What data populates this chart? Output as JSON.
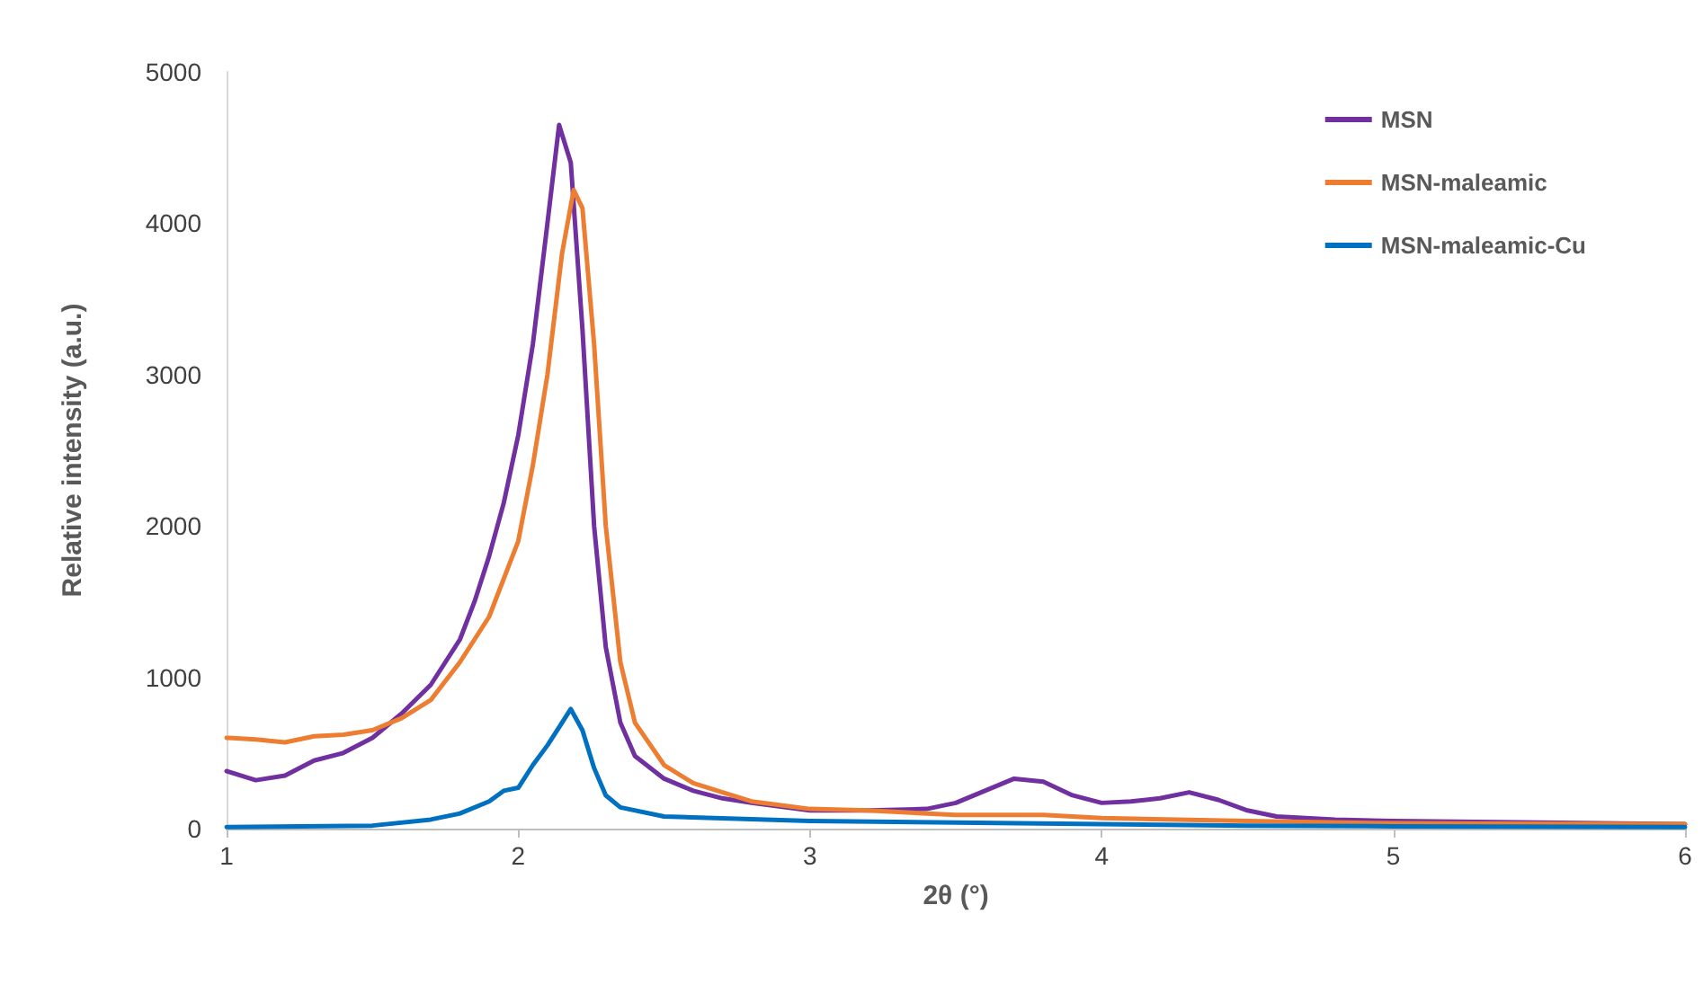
{
  "chart_data": {
    "type": "line",
    "xlabel": "2θ (°)",
    "ylabel": "Relative intensity (a.u.)",
    "xlim": [
      1,
      6
    ],
    "xticks": [
      1,
      2,
      3,
      4,
      5,
      6
    ],
    "ylim": [
      0,
      5000
    ],
    "yticks": [
      0,
      1000,
      2000,
      3000,
      4000,
      5000
    ],
    "grid": false,
    "legend": "top right",
    "marker": "none",
    "line_style": "solid",
    "series": [
      {
        "name": "MSN",
        "color": "#7030a0",
        "x": [
          1,
          1.1,
          1.2,
          1.3,
          1.4,
          1.5,
          1.6,
          1.7,
          1.8,
          1.85,
          1.9,
          1.95,
          2,
          2.05,
          2.1,
          2.14,
          2.18,
          2.22,
          2.26,
          2.3,
          2.35,
          2.4,
          2.5,
          2.6,
          2.7,
          2.8,
          3,
          3.2,
          3.4,
          3.5,
          3.6,
          3.7,
          3.8,
          3.9,
          4,
          4.1,
          4.2,
          4.3,
          4.4,
          4.5,
          4.6,
          4.8,
          5,
          5.5,
          6
        ],
        "values": [
          380,
          320,
          350,
          450,
          500,
          600,
          760,
          950,
          1250,
          1500,
          1800,
          2150,
          2600,
          3200,
          4000,
          4650,
          4400,
          3300,
          2000,
          1200,
          700,
          480,
          330,
          250,
          200,
          170,
          120,
          120,
          130,
          170,
          250,
          330,
          310,
          220,
          170,
          180,
          200,
          240,
          190,
          120,
          80,
          60,
          50,
          40,
          30
        ]
      },
      {
        "name": "MSN-maleamic",
        "color": "#ed7d31",
        "x": [
          1,
          1.1,
          1.2,
          1.3,
          1.4,
          1.5,
          1.6,
          1.7,
          1.8,
          1.9,
          2,
          2.05,
          2.1,
          2.15,
          2.19,
          2.22,
          2.26,
          2.3,
          2.35,
          2.4,
          2.5,
          2.6,
          2.7,
          2.8,
          3,
          3.2,
          3.5,
          3.8,
          4,
          4.5,
          5,
          6
        ],
        "values": [
          600,
          590,
          570,
          610,
          620,
          650,
          730,
          850,
          1100,
          1400,
          1900,
          2400,
          3000,
          3800,
          4220,
          4100,
          3200,
          2000,
          1100,
          700,
          420,
          300,
          240,
          180,
          130,
          120,
          90,
          90,
          70,
          50,
          35,
          30
        ]
      },
      {
        "name": "MSN-maleamic-Cu",
        "color": "#0070c0",
        "x": [
          1,
          1.5,
          1.7,
          1.8,
          1.9,
          1.95,
          2,
          2.05,
          2.1,
          2.15,
          2.18,
          2.22,
          2.26,
          2.3,
          2.35,
          2.5,
          3,
          3.5,
          4,
          4.5,
          5,
          6
        ],
        "values": [
          10,
          20,
          60,
          100,
          180,
          250,
          270,
          420,
          550,
          700,
          790,
          650,
          400,
          220,
          140,
          80,
          50,
          40,
          30,
          20,
          15,
          10
        ]
      }
    ]
  }
}
